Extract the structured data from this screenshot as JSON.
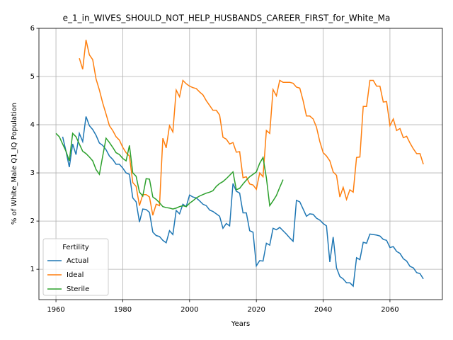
{
  "chart_data": {
    "type": "line",
    "title": "e_1_in_WIVES_SHOULD_NOT_HELP_HUSBANDS_CAREER_FIRST_for_White_Ma",
    "xlabel": "Years",
    "ylabel": "% of White_Male Q1_IQ Population",
    "legend_title": "Fertility",
    "legend": "lower left",
    "grid": true,
    "xlim": [
      1954.9,
      2075.7
    ],
    "ylim": [
      0.37,
      6.0
    ],
    "xticks": [
      1960,
      1980,
      2000,
      2020,
      2040,
      2060
    ],
    "yticks": [
      1,
      2,
      3,
      4,
      5,
      6
    ],
    "x": [
      1960,
      1961,
      1962,
      1963,
      1964,
      1965,
      1966,
      1967,
      1968,
      1969,
      1970,
      1971,
      1972,
      1973,
      1974,
      1975,
      1976,
      1977,
      1978,
      1979,
      1980,
      1981,
      1982,
      1983,
      1984,
      1985,
      1986,
      1987,
      1988,
      1989,
      1990,
      1991,
      1992,
      1993,
      1994,
      1995,
      1996,
      1997,
      1998,
      1999,
      2000,
      2001,
      2002,
      2003,
      2004,
      2005,
      2006,
      2007,
      2008,
      2009,
      2010,
      2011,
      2012,
      2013,
      2014,
      2015,
      2016,
      2017,
      2018,
      2019,
      2020,
      2021,
      2022,
      2023,
      2024,
      2025,
      2026,
      2027,
      2028,
      2029,
      2030,
      2031,
      2032,
      2033,
      2034,
      2035,
      2036,
      2037,
      2038,
      2039,
      2040,
      2041,
      2042,
      2043,
      2044,
      2045,
      2046,
      2047,
      2048,
      2049,
      2050,
      2051,
      2052,
      2053,
      2054,
      2055,
      2056,
      2057,
      2058,
      2059,
      2060,
      2061,
      2062,
      2063,
      2064,
      2065,
      2066,
      2067,
      2068,
      2069,
      2070
    ],
    "series": [
      {
        "name": "Actual",
        "color": "#1f77b4",
        "values": [
          null,
          null,
          3.75,
          3.45,
          3.12,
          3.6,
          3.38,
          3.82,
          3.65,
          4.17,
          3.98,
          3.9,
          3.78,
          3.62,
          3.57,
          3.48,
          3.35,
          3.28,
          3.18,
          3.18,
          3.1,
          3.0,
          2.97,
          2.48,
          2.4,
          1.98,
          2.25,
          2.24,
          2.18,
          1.77,
          1.7,
          1.68,
          1.6,
          1.55,
          1.8,
          1.72,
          2.22,
          2.15,
          2.35,
          2.3,
          2.54,
          2.5,
          2.48,
          2.42,
          2.35,
          2.32,
          2.23,
          2.2,
          2.15,
          2.1,
          1.85,
          1.95,
          1.9,
          2.78,
          2.62,
          2.58,
          2.17,
          2.17,
          1.8,
          1.77,
          1.07,
          1.18,
          1.17,
          1.54,
          1.5,
          1.85,
          1.82,
          1.87,
          1.8,
          1.73,
          1.65,
          1.58,
          2.43,
          2.4,
          2.25,
          2.1,
          2.15,
          2.14,
          2.06,
          2.02,
          1.95,
          1.9,
          1.15,
          1.67,
          1.03,
          0.85,
          0.8,
          0.72,
          0.72,
          0.65,
          1.24,
          1.2,
          1.56,
          1.54,
          1.73,
          1.72,
          1.71,
          1.69,
          1.62,
          1.6,
          1.45,
          1.47,
          1.37,
          1.33,
          1.22,
          1.17,
          1.06,
          1.03,
          0.93,
          0.91,
          0.8
        ]
      },
      {
        "name": "Ideal",
        "color": "#ff7f0e",
        "values": [
          null,
          null,
          null,
          null,
          null,
          null,
          null,
          5.38,
          5.15,
          5.76,
          5.45,
          5.35,
          4.95,
          4.72,
          4.45,
          4.22,
          3.98,
          3.88,
          3.75,
          3.68,
          3.53,
          3.42,
          3.35,
          2.8,
          2.72,
          2.32,
          2.55,
          2.55,
          2.5,
          2.12,
          2.35,
          2.32,
          3.72,
          3.52,
          3.98,
          3.85,
          4.72,
          4.58,
          4.92,
          4.85,
          4.8,
          4.77,
          4.75,
          4.68,
          4.62,
          4.5,
          4.4,
          4.3,
          4.3,
          4.2,
          3.74,
          3.7,
          3.6,
          3.63,
          3.43,
          3.44,
          2.9,
          2.92,
          2.77,
          2.75,
          2.66,
          3.0,
          2.92,
          3.88,
          3.82,
          4.73,
          4.6,
          4.92,
          4.88,
          4.88,
          4.88,
          4.86,
          4.78,
          4.76,
          4.5,
          4.18,
          4.18,
          4.12,
          3.95,
          3.65,
          3.42,
          3.35,
          3.25,
          3.02,
          2.95,
          2.5,
          2.7,
          2.45,
          2.65,
          2.6,
          3.32,
          3.33,
          4.38,
          4.38,
          4.92,
          4.92,
          4.8,
          4.8,
          4.47,
          4.48,
          3.98,
          4.12,
          3.88,
          3.92,
          3.73,
          3.76,
          3.62,
          3.5,
          3.4,
          3.4,
          3.18
        ]
      },
      {
        "name": "Sterile",
        "color": "#2ca02c",
        "values": [
          3.82,
          3.75,
          3.6,
          3.45,
          3.25,
          3.82,
          3.75,
          3.6,
          3.45,
          3.4,
          3.33,
          3.25,
          3.07,
          2.97,
          3.35,
          3.72,
          3.63,
          3.53,
          3.42,
          3.38,
          3.3,
          3.25,
          3.57,
          3.0,
          2.93,
          2.6,
          2.52,
          2.88,
          2.87,
          2.5,
          2.45,
          2.38,
          2.3,
          2.28,
          2.27,
          2.25,
          2.27,
          2.3,
          2.32,
          2.3,
          2.37,
          2.42,
          2.48,
          2.52,
          2.55,
          2.58,
          2.6,
          2.63,
          2.72,
          2.78,
          2.82,
          2.88,
          2.95,
          3.02,
          2.65,
          2.68,
          2.77,
          2.85,
          2.92,
          2.97,
          3.02,
          3.2,
          3.32,
          2.9,
          2.32,
          2.42,
          2.53,
          2.7,
          2.86,
          null,
          null,
          null,
          null,
          null,
          null,
          null,
          null,
          null,
          null,
          null,
          null,
          null,
          null,
          null,
          null,
          null,
          null,
          null,
          null,
          null,
          null,
          null,
          null,
          null,
          null,
          null,
          null,
          null,
          null,
          null,
          null,
          null,
          null,
          null,
          null,
          null,
          null,
          null,
          null,
          null,
          null
        ]
      }
    ]
  }
}
